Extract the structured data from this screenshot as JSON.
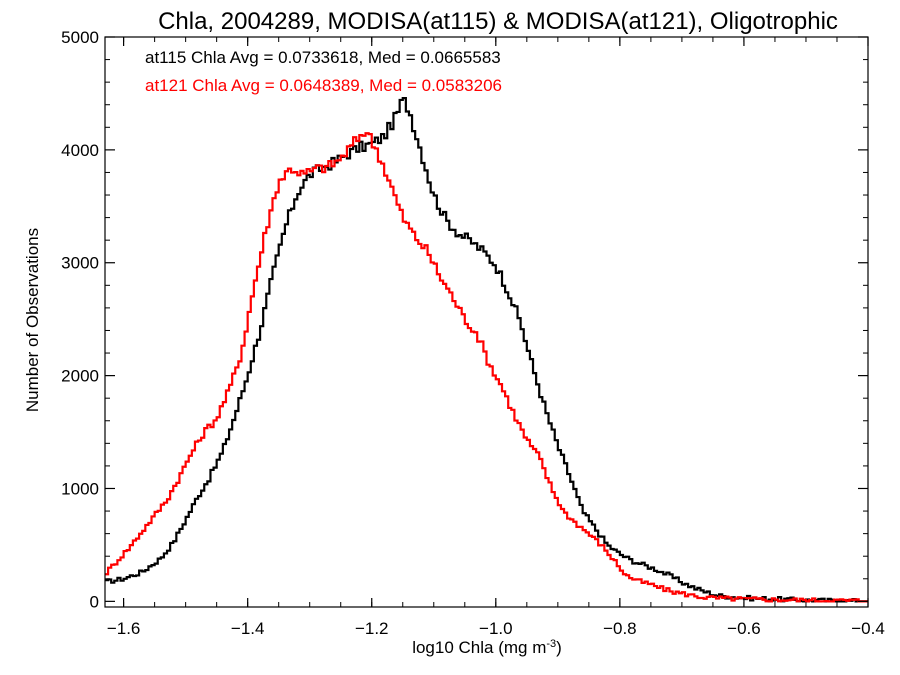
{
  "chart_data": {
    "type": "line",
    "step": true,
    "title": "Chla, 2004289, MODISA(at115) & MODISA(at121), Oligotrophic",
    "xlabel": "log10 Chla (mg m",
    "xlabel_sup": "-3",
    "xlabel_end": ")",
    "ylabel": "Number of Observations",
    "xlim": [
      -1.63,
      -0.4
    ],
    "ylim": [
      -50,
      5000
    ],
    "xticks": [
      -1.6,
      -1.4,
      -1.2,
      -1.0,
      -0.8,
      -0.6,
      -0.4
    ],
    "xtick_labels": [
      "−1.6",
      "−1.4",
      "−1.2",
      "−1.0",
      "−0.8",
      "−0.6",
      "−0.4"
    ],
    "yticks": [
      0,
      1000,
      2000,
      3000,
      4000,
      5000
    ],
    "ytick_labels": [
      "0",
      "1000",
      "2000",
      "3000",
      "4000",
      "5000"
    ],
    "grid": false,
    "legend_position": "top-left",
    "series": [
      {
        "name": "at115",
        "label": "at115 Chla Avg = 0.0733618, Med = 0.0665583",
        "color": "#000000",
        "points": [
          [
            -1.63,
            170
          ],
          [
            -1.6,
            200
          ],
          [
            -1.57,
            260
          ],
          [
            -1.54,
            380
          ],
          [
            -1.52,
            520
          ],
          [
            -1.5,
            720
          ],
          [
            -1.48,
            930
          ],
          [
            -1.46,
            1110
          ],
          [
            -1.44,
            1330
          ],
          [
            -1.42,
            1650
          ],
          [
            -1.4,
            2000
          ],
          [
            -1.38,
            2400
          ],
          [
            -1.36,
            2880
          ],
          [
            -1.34,
            3300
          ],
          [
            -1.32,
            3620
          ],
          [
            -1.3,
            3780
          ],
          [
            -1.28,
            3840
          ],
          [
            -1.26,
            3890
          ],
          [
            -1.24,
            3960
          ],
          [
            -1.22,
            4020
          ],
          [
            -1.2,
            4050
          ],
          [
            -1.18,
            4120
          ],
          [
            -1.16,
            4300
          ],
          [
            -1.15,
            4450
          ],
          [
            -1.14,
            4360
          ],
          [
            -1.12,
            3980
          ],
          [
            -1.1,
            3600
          ],
          [
            -1.08,
            3380
          ],
          [
            -1.06,
            3260
          ],
          [
            -1.04,
            3190
          ],
          [
            -1.02,
            3100
          ],
          [
            -1.0,
            2980
          ],
          [
            -0.98,
            2750
          ],
          [
            -0.96,
            2470
          ],
          [
            -0.94,
            2070
          ],
          [
            -0.92,
            1700
          ],
          [
            -0.9,
            1380
          ],
          [
            -0.88,
            1100
          ],
          [
            -0.86,
            800
          ],
          [
            -0.84,
            650
          ],
          [
            -0.82,
            500
          ],
          [
            -0.8,
            420
          ],
          [
            -0.78,
            360
          ],
          [
            -0.76,
            320
          ],
          [
            -0.74,
            280
          ],
          [
            -0.72,
            230
          ],
          [
            -0.7,
            170
          ],
          [
            -0.68,
            120
          ],
          [
            -0.66,
            80
          ],
          [
            -0.64,
            50
          ],
          [
            -0.62,
            40
          ],
          [
            -0.6,
            30
          ],
          [
            -0.55,
            20
          ],
          [
            -0.5,
            10
          ],
          [
            -0.45,
            5
          ],
          [
            -0.4,
            2
          ]
        ]
      },
      {
        "name": "at121",
        "label": "at121 Chla Avg = 0.0648389, Med = 0.0583206",
        "color": "#ff0000",
        "points": [
          [
            -1.63,
            240
          ],
          [
            -1.61,
            360
          ],
          [
            -1.59,
            480
          ],
          [
            -1.57,
            620
          ],
          [
            -1.55,
            760
          ],
          [
            -1.53,
            900
          ],
          [
            -1.51,
            1100
          ],
          [
            -1.49,
            1320
          ],
          [
            -1.47,
            1500
          ],
          [
            -1.45,
            1620
          ],
          [
            -1.43,
            1870
          ],
          [
            -1.41,
            2200
          ],
          [
            -1.39,
            2780
          ],
          [
            -1.37,
            3300
          ],
          [
            -1.35,
            3720
          ],
          [
            -1.33,
            3840
          ],
          [
            -1.31,
            3780
          ],
          [
            -1.29,
            3830
          ],
          [
            -1.27,
            3850
          ],
          [
            -1.25,
            3920
          ],
          [
            -1.23,
            4050
          ],
          [
            -1.21,
            4180
          ],
          [
            -1.19,
            3980
          ],
          [
            -1.17,
            3700
          ],
          [
            -1.15,
            3400
          ],
          [
            -1.13,
            3230
          ],
          [
            -1.11,
            3100
          ],
          [
            -1.09,
            2880
          ],
          [
            -1.07,
            2700
          ],
          [
            -1.05,
            2500
          ],
          [
            -1.03,
            2370
          ],
          [
            -1.01,
            2100
          ],
          [
            -0.99,
            1900
          ],
          [
            -0.97,
            1650
          ],
          [
            -0.95,
            1430
          ],
          [
            -0.93,
            1280
          ],
          [
            -0.91,
            1000
          ],
          [
            -0.89,
            790
          ],
          [
            -0.87,
            690
          ],
          [
            -0.85,
            600
          ],
          [
            -0.83,
            500
          ],
          [
            -0.81,
            370
          ],
          [
            -0.79,
            230
          ],
          [
            -0.77,
            180
          ],
          [
            -0.75,
            150
          ],
          [
            -0.73,
            110
          ],
          [
            -0.71,
            80
          ],
          [
            -0.69,
            60
          ],
          [
            -0.67,
            40
          ],
          [
            -0.65,
            30
          ],
          [
            -0.6,
            20
          ],
          [
            -0.55,
            15
          ],
          [
            -0.5,
            10
          ],
          [
            -0.45,
            8
          ],
          [
            -0.4,
            5
          ]
        ]
      }
    ]
  }
}
